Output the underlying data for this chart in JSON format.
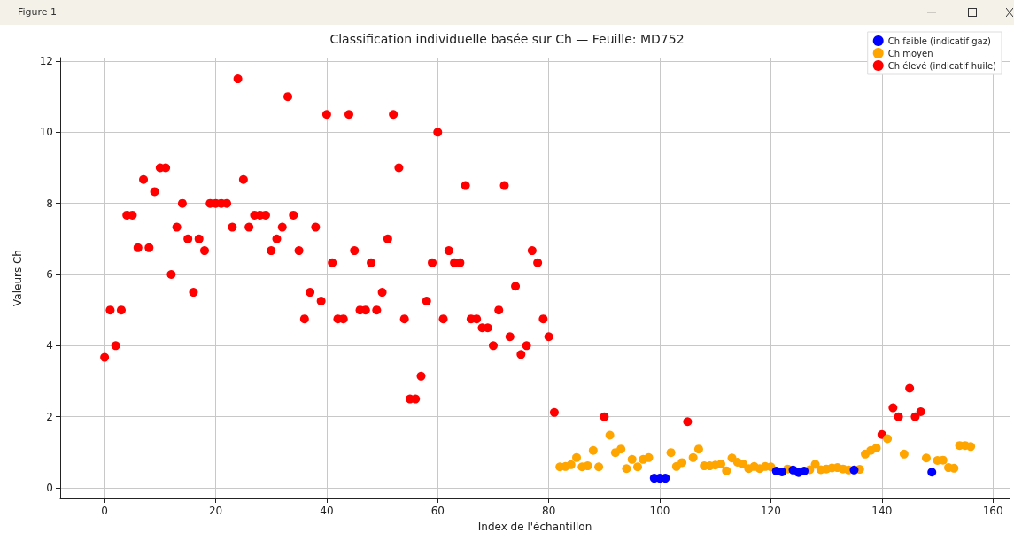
{
  "chart_data": {
    "type": "scatter",
    "title": "Classification individuelle basée sur Ch — Feuille: MD752",
    "xlabel": "Index de l'échantillon",
    "ylabel": "Valeurs Ch",
    "annotations": [
      "Figure 1"
    ],
    "series": [
      {
        "name": "Ch faible (indicatif gaz)",
        "color": "#0000ff",
        "x": [
          99,
          100,
          101,
          121,
          122,
          124,
          125,
          126,
          135,
          149
        ],
        "values": [
          0.27,
          0.27,
          0.27,
          0.47,
          0.45,
          0.5,
          0.43,
          0.47,
          0.5,
          0.44
        ]
      },
      {
        "name": "Ch moyen",
        "color": "#ffa500",
        "x": [
          82,
          83,
          84,
          85,
          86,
          87,
          88,
          89,
          91,
          92,
          93,
          94,
          95,
          96,
          97,
          98,
          102,
          103,
          104,
          106,
          107,
          108,
          109,
          110,
          111,
          112,
          113,
          114,
          115,
          116,
          117,
          118,
          119,
          120,
          123,
          127,
          128,
          129,
          130,
          131,
          132,
          133,
          134,
          136,
          137,
          138,
          139,
          141,
          144,
          148,
          150,
          151,
          152,
          153,
          154,
          155,
          156
        ],
        "values": [
          0.59,
          0.6,
          0.65,
          0.85,
          0.59,
          0.62,
          1.05,
          0.59,
          1.48,
          0.99,
          1.09,
          0.54,
          0.8,
          0.59,
          0.8,
          0.85,
          0.99,
          0.6,
          0.71,
          0.85,
          1.09,
          0.62,
          0.62,
          0.64,
          0.67,
          0.48,
          0.84,
          0.72,
          0.67,
          0.54,
          0.6,
          0.54,
          0.6,
          0.59,
          0.53,
          0.51,
          0.66,
          0.51,
          0.53,
          0.56,
          0.57,
          0.53,
          0.5,
          0.52,
          0.95,
          1.05,
          1.12,
          1.38,
          0.95,
          0.84,
          0.77,
          0.78,
          0.57,
          0.55,
          1.19,
          1.19,
          1.16
        ]
      },
      {
        "name": "Ch élevé (indicatif huile)",
        "color": "#ff0000",
        "x": [
          0,
          1,
          2,
          3,
          4,
          5,
          6,
          7,
          8,
          9,
          10,
          11,
          12,
          13,
          14,
          15,
          16,
          17,
          18,
          19,
          20,
          21,
          22,
          23,
          24,
          25,
          26,
          27,
          28,
          29,
          30,
          31,
          32,
          33,
          34,
          35,
          36,
          37,
          38,
          39,
          40,
          41,
          42,
          43,
          44,
          45,
          46,
          47,
          48,
          49,
          50,
          51,
          52,
          53,
          54,
          55,
          56,
          57,
          58,
          59,
          60,
          61,
          62,
          63,
          64,
          65,
          66,
          67,
          68,
          69,
          70,
          71,
          72,
          73,
          74,
          75,
          76,
          77,
          78,
          79,
          80,
          81,
          90,
          105,
          140,
          142,
          143,
          145,
          146,
          147
        ],
        "values": [
          3.67,
          5,
          4,
          5,
          7.67,
          7.67,
          6.75,
          8.67,
          6.75,
          8.33,
          9,
          9,
          6,
          7.33,
          8,
          7,
          5.5,
          7,
          6.67,
          8,
          8,
          8,
          8,
          7.33,
          11.5,
          8.67,
          7.33,
          7.67,
          7.67,
          7.67,
          6.67,
          7,
          7.33,
          11,
          7.67,
          6.67,
          4.75,
          5.5,
          7.33,
          5.25,
          10.5,
          6.33,
          4.75,
          4.75,
          10.5,
          6.67,
          5,
          5,
          6.33,
          5,
          5.5,
          7,
          10.5,
          9,
          4.75,
          2.5,
          2.5,
          3.14,
          5.25,
          6.33,
          10,
          4.75,
          6.67,
          6.33,
          6.33,
          8.5,
          4.75,
          4.75,
          4.5,
          4.5,
          4,
          5,
          8.5,
          4.25,
          5.67,
          3.75,
          4,
          6.67,
          6.33,
          4.75,
          4.25,
          2.12,
          2,
          1.86,
          1.5,
          2.25,
          2,
          2.8,
          2,
          2.14
        ]
      }
    ],
    "xlim": [
      -8,
      163
    ],
    "xticks": [
      0,
      20,
      40,
      60,
      80,
      100,
      120,
      140,
      160
    ],
    "ylim": [
      -0.3,
      12.1
    ],
    "yticks": [
      0,
      2,
      4,
      6,
      8,
      10,
      12
    ],
    "grid": true,
    "legend": "top right",
    "marker": "circle"
  }
}
